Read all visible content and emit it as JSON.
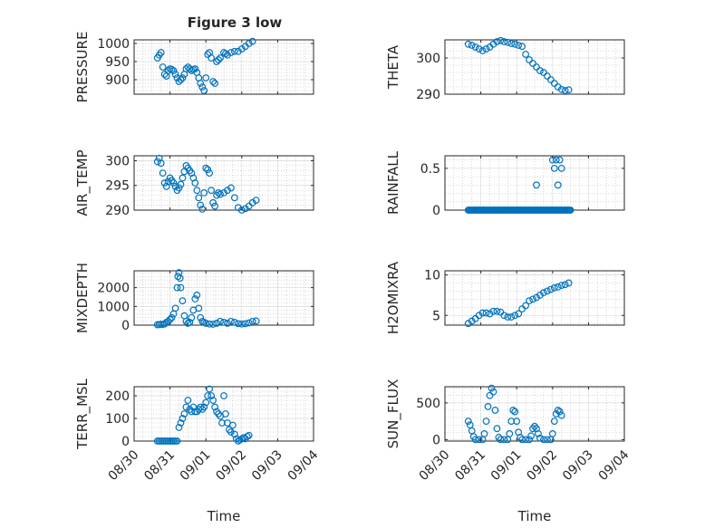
{
  "figure": {
    "title": "Figure 3 low",
    "marker_color": "#0072BD",
    "axis_color": "#262626",
    "grid_color": "#b0b0b0"
  },
  "chart_data": [
    {
      "type": "scatter",
      "name_key": "pressure",
      "ylabel": "PRESSURE",
      "ylim": [
        860,
        1010
      ],
      "yticks": [
        900,
        950,
        1000
      ],
      "x": [
        "2011-08-30",
        "2011-09-04"
      ],
      "x_range_days": [
        0,
        5
      ],
      "xticks": [
        "08/30",
        "08/31",
        "09/01",
        "09/02",
        "09/03",
        "09/04"
      ],
      "show_xticklabels": false,
      "grid": true,
      "points": [
        [
          0.65,
          960
        ],
        [
          0.7,
          968
        ],
        [
          0.75,
          975
        ],
        [
          0.8,
          935
        ],
        [
          0.85,
          915
        ],
        [
          0.9,
          910
        ],
        [
          0.95,
          925
        ],
        [
          1.0,
          930
        ],
        [
          1.05,
          928
        ],
        [
          1.1,
          925
        ],
        [
          1.15,
          915
        ],
        [
          1.2,
          905
        ],
        [
          1.25,
          895
        ],
        [
          1.3,
          900
        ],
        [
          1.35,
          905
        ],
        [
          1.4,
          915
        ],
        [
          1.45,
          930
        ],
        [
          1.5,
          935
        ],
        [
          1.55,
          930
        ],
        [
          1.6,
          925
        ],
        [
          1.65,
          928
        ],
        [
          1.7,
          930
        ],
        [
          1.75,
          920
        ],
        [
          1.8,
          905
        ],
        [
          1.85,
          890
        ],
        [
          1.9,
          880
        ],
        [
          1.95,
          870
        ],
        [
          2.0,
          905
        ],
        [
          2.05,
          970
        ],
        [
          2.1,
          975
        ],
        [
          2.15,
          960
        ],
        [
          2.2,
          895
        ],
        [
          2.25,
          890
        ],
        [
          2.3,
          950
        ],
        [
          2.35,
          955
        ],
        [
          2.4,
          960
        ],
        [
          2.5,
          975
        ],
        [
          2.55,
          972
        ],
        [
          2.6,
          968
        ],
        [
          2.7,
          975
        ],
        [
          2.8,
          978
        ],
        [
          2.9,
          978
        ],
        [
          3.0,
          985
        ],
        [
          3.1,
          992
        ],
        [
          3.2,
          1000
        ],
        [
          3.3,
          1006
        ]
      ]
    },
    {
      "type": "scatter",
      "name_key": "theta",
      "ylabel": "THETA",
      "ylim": [
        290,
        305
      ],
      "yticks": [
        290,
        300
      ],
      "x_range_days": [
        0,
        5
      ],
      "xticks": [
        "08/30",
        "08/31",
        "09/01",
        "09/02",
        "09/03",
        "09/04"
      ],
      "show_xticklabels": false,
      "grid": true,
      "points": [
        [
          0.65,
          303.8
        ],
        [
          0.75,
          303.5
        ],
        [
          0.85,
          303.0
        ],
        [
          0.95,
          302.5
        ],
        [
          1.05,
          302.0
        ],
        [
          1.15,
          302.5
        ],
        [
          1.25,
          303.0
        ],
        [
          1.35,
          303.8
        ],
        [
          1.45,
          304.5
        ],
        [
          1.55,
          304.8
        ],
        [
          1.65,
          304.5
        ],
        [
          1.75,
          304.3
        ],
        [
          1.85,
          304.0
        ],
        [
          1.95,
          303.8
        ],
        [
          2.05,
          303.5
        ],
        [
          2.15,
          303.2
        ],
        [
          2.25,
          301.0
        ],
        [
          2.35,
          299.5
        ],
        [
          2.45,
          298.5
        ],
        [
          2.55,
          297.5
        ],
        [
          2.65,
          296.5
        ],
        [
          2.75,
          296.0
        ],
        [
          2.85,
          295.0
        ],
        [
          2.95,
          294.0
        ],
        [
          3.05,
          293.0
        ],
        [
          3.15,
          292.0
        ],
        [
          3.25,
          291.3
        ],
        [
          3.35,
          291.0
        ],
        [
          3.45,
          291.2
        ]
      ]
    },
    {
      "type": "scatter",
      "name_key": "air_temp",
      "ylabel": "AIR_TEMP",
      "ylim": [
        290,
        301
      ],
      "yticks": [
        290,
        295,
        300
      ],
      "x_range_days": [
        0,
        5
      ],
      "xticks": [
        "08/30",
        "08/31",
        "09/01",
        "09/02",
        "09/03",
        "09/04"
      ],
      "show_xticklabels": false,
      "grid": true,
      "points": [
        [
          0.65,
          299.8
        ],
        [
          0.7,
          300.5
        ],
        [
          0.75,
          299.5
        ],
        [
          0.8,
          297.5
        ],
        [
          0.85,
          295.5
        ],
        [
          0.9,
          294.8
        ],
        [
          0.95,
          295.8
        ],
        [
          1.0,
          296.5
        ],
        [
          1.05,
          296.0
        ],
        [
          1.1,
          295.5
        ],
        [
          1.15,
          294.8
        ],
        [
          1.2,
          294.0
        ],
        [
          1.25,
          294.5
        ],
        [
          1.3,
          295.2
        ],
        [
          1.35,
          296.5
        ],
        [
          1.4,
          297.8
        ],
        [
          1.45,
          299.0
        ],
        [
          1.5,
          298.5
        ],
        [
          1.55,
          298.0
        ],
        [
          1.6,
          297.5
        ],
        [
          1.65,
          296.5
        ],
        [
          1.7,
          295.5
        ],
        [
          1.75,
          294.0
        ],
        [
          1.8,
          292.5
        ],
        [
          1.85,
          291.0
        ],
        [
          1.9,
          290.2
        ],
        [
          1.95,
          293.5
        ],
        [
          2.0,
          298.5
        ],
        [
          2.05,
          298.2
        ],
        [
          2.1,
          297.5
        ],
        [
          2.15,
          294.0
        ],
        [
          2.2,
          291.5
        ],
        [
          2.25,
          290.8
        ],
        [
          2.3,
          293.0
        ],
        [
          2.35,
          293.5
        ],
        [
          2.4,
          293.2
        ],
        [
          2.5,
          293.5
        ],
        [
          2.6,
          294.0
        ],
        [
          2.7,
          294.5
        ],
        [
          2.8,
          292.5
        ],
        [
          2.9,
          290.5
        ],
        [
          3.0,
          290.0
        ],
        [
          3.1,
          290.3
        ],
        [
          3.2,
          290.8
        ],
        [
          3.3,
          291.5
        ],
        [
          3.4,
          292.0
        ]
      ]
    },
    {
      "type": "scatter",
      "name_key": "rainfall",
      "ylabel": "RAINFALL",
      "ylim": [
        0,
        0.65
      ],
      "yticks": [
        0,
        0.5
      ],
      "ytick_labels": [
        "0",
        "0.5"
      ],
      "x_range_days": [
        0,
        5
      ],
      "xticks": [
        "08/30",
        "08/31",
        "09/01",
        "09/02",
        "09/03",
        "09/04"
      ],
      "show_xticklabels": false,
      "grid": true,
      "zero_run_days": [
        0.65,
        3.5
      ],
      "points": [
        [
          2.55,
          0.3
        ],
        [
          3.0,
          0.6
        ],
        [
          3.05,
          0.5
        ],
        [
          3.1,
          0.6
        ],
        [
          3.15,
          0.3
        ],
        [
          3.2,
          0.6
        ],
        [
          3.25,
          0.5
        ]
      ]
    },
    {
      "type": "scatter",
      "name_key": "mixdepth",
      "ylabel": "MIXDEPTH",
      "ylim": [
        0,
        2900
      ],
      "yticks": [
        0,
        1000,
        2000
      ],
      "x_range_days": [
        0,
        5
      ],
      "xticks": [
        "08/30",
        "08/31",
        "09/01",
        "09/02",
        "09/03",
        "09/04"
      ],
      "show_xticklabels": false,
      "grid": true,
      "points": [
        [
          0.65,
          20
        ],
        [
          0.7,
          30
        ],
        [
          0.75,
          50
        ],
        [
          0.8,
          40
        ],
        [
          0.85,
          60
        ],
        [
          0.9,
          150
        ],
        [
          0.95,
          200
        ],
        [
          1.0,
          300
        ],
        [
          1.05,
          400
        ],
        [
          1.1,
          600
        ],
        [
          1.15,
          900
        ],
        [
          1.2,
          2000
        ],
        [
          1.22,
          2600
        ],
        [
          1.25,
          2800
        ],
        [
          1.28,
          2500
        ],
        [
          1.3,
          2000
        ],
        [
          1.35,
          1300
        ],
        [
          1.4,
          500
        ],
        [
          1.45,
          200
        ],
        [
          1.5,
          100
        ],
        [
          1.55,
          150
        ],
        [
          1.6,
          400
        ],
        [
          1.65,
          800
        ],
        [
          1.7,
          1400
        ],
        [
          1.75,
          1600
        ],
        [
          1.8,
          900
        ],
        [
          1.85,
          400
        ],
        [
          1.9,
          200
        ],
        [
          1.95,
          150
        ],
        [
          2.0,
          100
        ],
        [
          2.1,
          60
        ],
        [
          2.2,
          50
        ],
        [
          2.3,
          100
        ],
        [
          2.4,
          200
        ],
        [
          2.5,
          150
        ],
        [
          2.6,
          100
        ],
        [
          2.7,
          200
        ],
        [
          2.8,
          150
        ],
        [
          2.9,
          80
        ],
        [
          3.0,
          60
        ],
        [
          3.1,
          80
        ],
        [
          3.2,
          120
        ],
        [
          3.3,
          200
        ],
        [
          3.4,
          220
        ]
      ]
    },
    {
      "type": "scatter",
      "name_key": "h2omixra",
      "ylabel": "H2OMIXRA",
      "ylim": [
        3.8,
        10.5
      ],
      "yticks": [
        5,
        10
      ],
      "x_range_days": [
        0,
        5
      ],
      "xticks": [
        "08/30",
        "08/31",
        "09/01",
        "09/02",
        "09/03",
        "09/04"
      ],
      "show_xticklabels": false,
      "grid": true,
      "points": [
        [
          0.65,
          4.0
        ],
        [
          0.75,
          4.3
        ],
        [
          0.85,
          4.6
        ],
        [
          0.95,
          5.0
        ],
        [
          1.05,
          5.3
        ],
        [
          1.15,
          5.3
        ],
        [
          1.25,
          5.2
        ],
        [
          1.35,
          5.5
        ],
        [
          1.45,
          5.5
        ],
        [
          1.55,
          5.4
        ],
        [
          1.65,
          5.0
        ],
        [
          1.75,
          4.8
        ],
        [
          1.85,
          4.8
        ],
        [
          1.95,
          5.0
        ],
        [
          2.05,
          5.2
        ],
        [
          2.15,
          5.8
        ],
        [
          2.25,
          6.2
        ],
        [
          2.35,
          6.8
        ],
        [
          2.45,
          7.0
        ],
        [
          2.55,
          7.2
        ],
        [
          2.65,
          7.5
        ],
        [
          2.75,
          7.8
        ],
        [
          2.85,
          8.0
        ],
        [
          2.95,
          8.2
        ],
        [
          3.05,
          8.4
        ],
        [
          3.15,
          8.5
        ],
        [
          3.25,
          8.7
        ],
        [
          3.35,
          8.8
        ],
        [
          3.45,
          9.0
        ]
      ]
    },
    {
      "type": "scatter",
      "name_key": "terr_msl",
      "ylabel": "TERR_MSL",
      "ylim": [
        0,
        240
      ],
      "yticks": [
        0,
        100,
        200
      ],
      "x_range_days": [
        0,
        5
      ],
      "xticks": [
        "08/30",
        "08/31",
        "09/01",
        "09/02",
        "09/03",
        "09/04"
      ],
      "xtick_labels": [
        "08/30",
        "08/31",
        "09/01",
        "09/02",
        "09/03",
        "09/04"
      ],
      "show_xticklabels": true,
      "xlabel": "Time",
      "grid": true,
      "points": [
        [
          0.65,
          0
        ],
        [
          0.7,
          0
        ],
        [
          0.75,
          0
        ],
        [
          0.8,
          0
        ],
        [
          0.85,
          0
        ],
        [
          0.9,
          0
        ],
        [
          0.95,
          0
        ],
        [
          1.0,
          0
        ],
        [
          1.05,
          0
        ],
        [
          1.1,
          0
        ],
        [
          1.15,
          0
        ],
        [
          1.2,
          0
        ],
        [
          1.25,
          60
        ],
        [
          1.3,
          80
        ],
        [
          1.35,
          100
        ],
        [
          1.4,
          120
        ],
        [
          1.45,
          150
        ],
        [
          1.5,
          180
        ],
        [
          1.55,
          140
        ],
        [
          1.6,
          130
        ],
        [
          1.65,
          150
        ],
        [
          1.7,
          130
        ],
        [
          1.75,
          130
        ],
        [
          1.8,
          140
        ],
        [
          1.85,
          150
        ],
        [
          1.9,
          140
        ],
        [
          1.95,
          150
        ],
        [
          2.0,
          170
        ],
        [
          2.05,
          200
        ],
        [
          2.1,
          230
        ],
        [
          2.15,
          200
        ],
        [
          2.2,
          180
        ],
        [
          2.25,
          150
        ],
        [
          2.3,
          130
        ],
        [
          2.35,
          120
        ],
        [
          2.4,
          110
        ],
        [
          2.45,
          80
        ],
        [
          2.5,
          200
        ],
        [
          2.55,
          120
        ],
        [
          2.6,
          80
        ],
        [
          2.65,
          50
        ],
        [
          2.7,
          40
        ],
        [
          2.75,
          70
        ],
        [
          2.8,
          30
        ],
        [
          2.85,
          10
        ],
        [
          2.9,
          0
        ],
        [
          2.95,
          5
        ],
        [
          3.0,
          10
        ],
        [
          3.05,
          15
        ],
        [
          3.1,
          10
        ],
        [
          3.15,
          20
        ],
        [
          3.2,
          25
        ]
      ]
    },
    {
      "type": "scatter",
      "name_key": "sun_flux",
      "ylabel": "SUN_FLUX",
      "ylim": [
        -20,
        720
      ],
      "yticks": [
        0,
        500
      ],
      "x_range_days": [
        0,
        5
      ],
      "xticks": [
        "08/30",
        "08/31",
        "09/01",
        "09/02",
        "09/03",
        "09/04"
      ],
      "xtick_labels": [
        "08/30",
        "08/31",
        "09/01",
        "09/02",
        "09/03",
        "09/04"
      ],
      "show_xticklabels": true,
      "xlabel": "Time",
      "grid": true,
      "points": [
        [
          0.65,
          250
        ],
        [
          0.7,
          200
        ],
        [
          0.75,
          120
        ],
        [
          0.8,
          40
        ],
        [
          0.85,
          0
        ],
        [
          0.95,
          0
        ],
        [
          1.05,
          0
        ],
        [
          1.1,
          80
        ],
        [
          1.15,
          250
        ],
        [
          1.2,
          450
        ],
        [
          1.25,
          600
        ],
        [
          1.3,
          700
        ],
        [
          1.35,
          650
        ],
        [
          1.4,
          400
        ],
        [
          1.45,
          150
        ],
        [
          1.5,
          30
        ],
        [
          1.55,
          0
        ],
        [
          1.65,
          0
        ],
        [
          1.75,
          0
        ],
        [
          1.8,
          80
        ],
        [
          1.85,
          250
        ],
        [
          1.9,
          400
        ],
        [
          1.95,
          380
        ],
        [
          2.0,
          250
        ],
        [
          2.05,
          100
        ],
        [
          2.1,
          30
        ],
        [
          2.15,
          0
        ],
        [
          2.25,
          0
        ],
        [
          2.35,
          0
        ],
        [
          2.4,
          50
        ],
        [
          2.45,
          150
        ],
        [
          2.5,
          180
        ],
        [
          2.55,
          150
        ],
        [
          2.6,
          80
        ],
        [
          2.65,
          20
        ],
        [
          2.75,
          0
        ],
        [
          2.85,
          0
        ],
        [
          2.95,
          0
        ],
        [
          3.0,
          80
        ],
        [
          3.05,
          250
        ],
        [
          3.1,
          350
        ],
        [
          3.15,
          400
        ],
        [
          3.2,
          380
        ],
        [
          3.25,
          330
        ]
      ]
    }
  ]
}
